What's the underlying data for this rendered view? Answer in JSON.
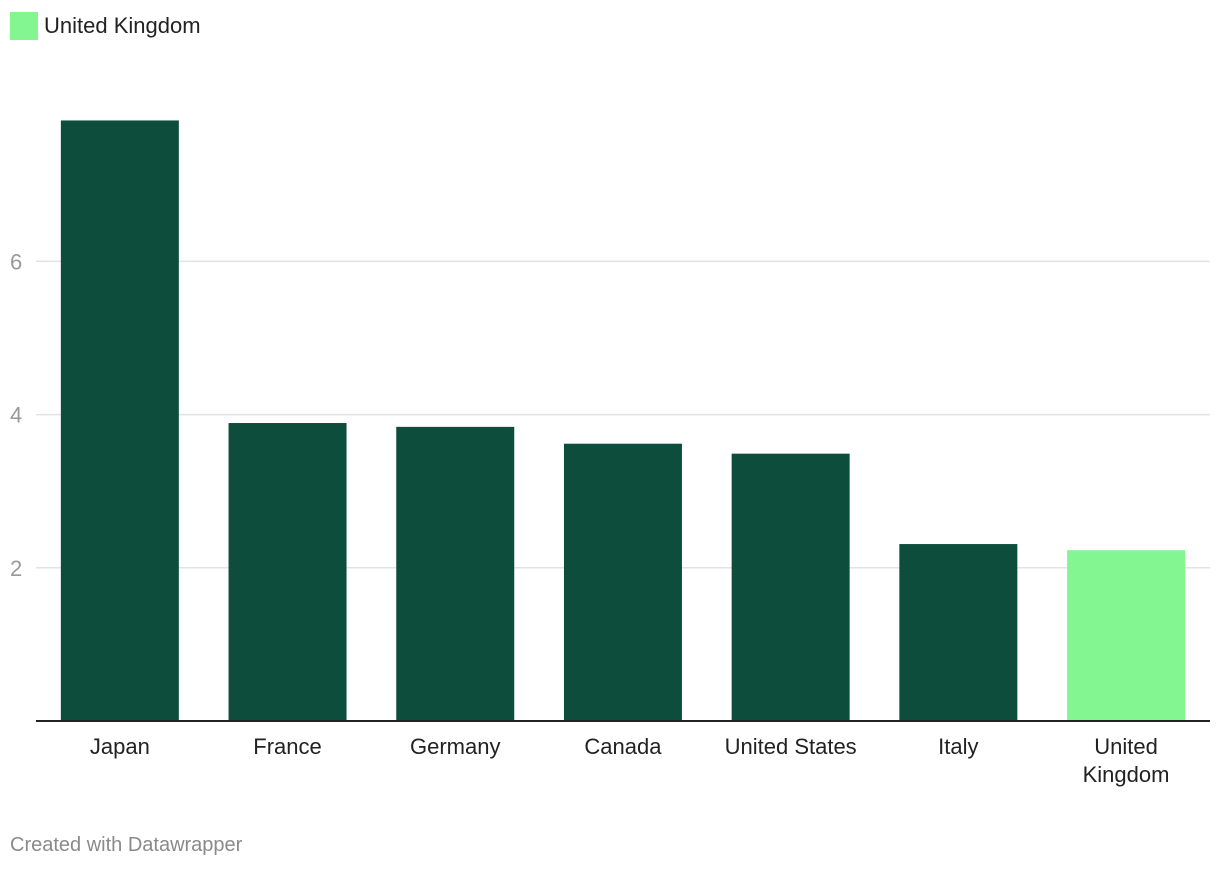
{
  "chart_data": {
    "type": "bar",
    "title": "",
    "xlabel": "",
    "ylabel": "",
    "categories": [
      "Japan",
      "France",
      "Germany",
      "Canada",
      "United States",
      "Italy",
      "United Kingdom"
    ],
    "category_lines": [
      [
        "Japan"
      ],
      [
        "France"
      ],
      [
        "Germany"
      ],
      [
        "Canada"
      ],
      [
        "United States"
      ],
      [
        "Italy"
      ],
      [
        "United",
        "Kingdom"
      ]
    ],
    "values": [
      7.84,
      3.89,
      3.84,
      3.62,
      3.49,
      2.31,
      2.23
    ],
    "highlight": "United Kingdom",
    "ylim": [
      0,
      8
    ],
    "yticks": [
      2,
      4,
      6
    ],
    "grid": true,
    "legend": {
      "position": "top-left",
      "entries": [
        "United Kingdom"
      ]
    }
  },
  "colors": {
    "default_bar": "#0d4d3c",
    "highlight_bar": "#83f692",
    "grid": "#e3e3e3",
    "axis": "#222222",
    "tick_label": "#999999",
    "category_label": "#222222"
  },
  "legend_label": "United Kingdom",
  "credit": "Created with Datawrapper"
}
